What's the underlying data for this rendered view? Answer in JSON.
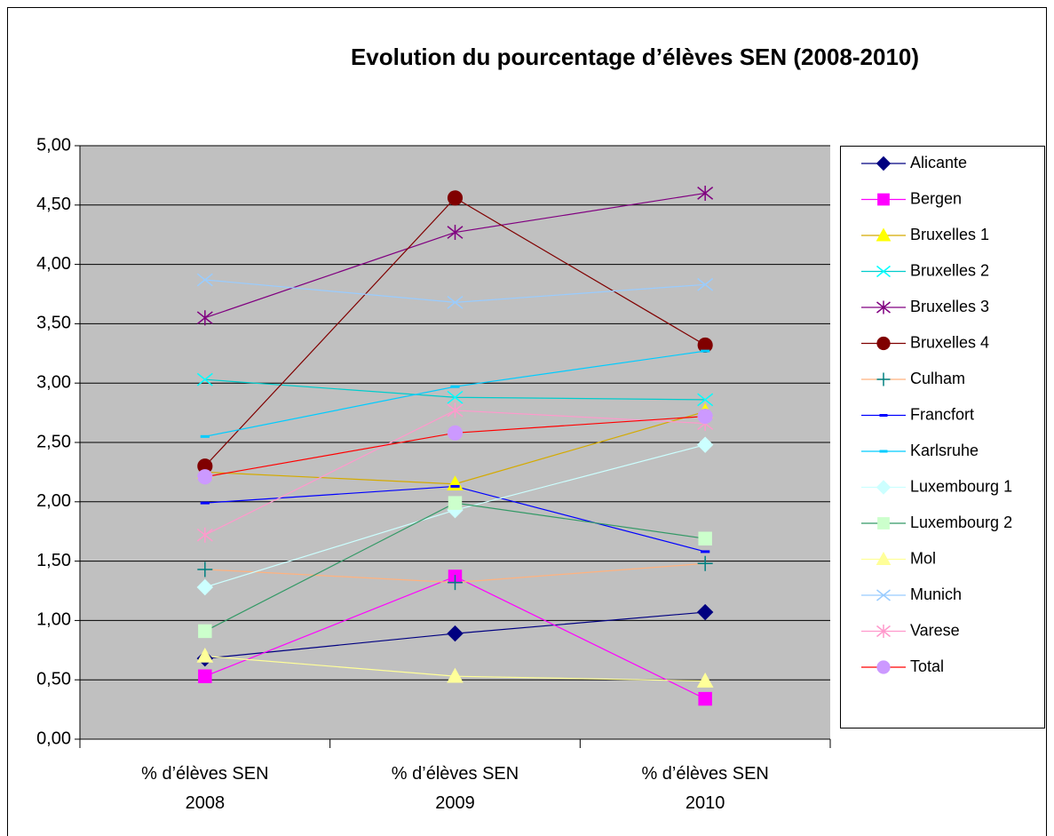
{
  "chart_data": {
    "type": "line",
    "title": "Evolution du pourcentage d’élèves SEN (2008-2010)",
    "categories": [
      "% d’élèves SEN 2008",
      "% d’élèves SEN 2009",
      "% d’élèves SEN 2010"
    ],
    "ylim": [
      0,
      5
    ],
    "yticks": [
      {
        "value": 0,
        "label": "0,00"
      },
      {
        "value": 0.5,
        "label": "0,50"
      },
      {
        "value": 1,
        "label": "1,00"
      },
      {
        "value": 1.5,
        "label": "1,50"
      },
      {
        "value": 2,
        "label": "2,00"
      },
      {
        "value": 2.5,
        "label": "2,50"
      },
      {
        "value": 3,
        "label": "3,00"
      },
      {
        "value": 3.5,
        "label": "3,50"
      },
      {
        "value": 4,
        "label": "4,00"
      },
      {
        "value": 4.5,
        "label": "4,50"
      },
      {
        "value": 5,
        "label": "5,00"
      }
    ],
    "grid": true,
    "legend": "right",
    "series": [
      {
        "name": "Alicante",
        "color": "#000080",
        "marker": "diamond",
        "values": [
          0.68,
          0.89,
          1.07
        ]
      },
      {
        "name": "Bergen",
        "color": "#FF00FF",
        "marker": "square",
        "values": [
          0.53,
          1.37,
          0.34
        ]
      },
      {
        "name": "Bruxelles 1",
        "color": "#FFFF00",
        "line_color": "#D4AA00",
        "marker": "triangle",
        "values": [
          2.25,
          2.15,
          2.76
        ]
      },
      {
        "name": "Bruxelles 2",
        "color": "#00FFFF",
        "line_color": "#00CCCC",
        "marker": "x",
        "values": [
          3.03,
          2.88,
          2.86
        ]
      },
      {
        "name": "Bruxelles 3",
        "color": "#800080",
        "marker": "star",
        "values": [
          3.55,
          4.27,
          4.6
        ]
      },
      {
        "name": "Bruxelles 4",
        "color": "#800000",
        "marker": "circle",
        "values": [
          2.3,
          4.56,
          3.32
        ]
      },
      {
        "name": "Culham",
        "color": "#008080",
        "line_color": "#FFB27F",
        "marker": "plus",
        "values": [
          1.43,
          1.32,
          1.48
        ]
      },
      {
        "name": "Francfort",
        "color": "#0000FF",
        "marker": "dash",
        "values": [
          1.99,
          2.13,
          1.58
        ]
      },
      {
        "name": "Karlsruhe",
        "color": "#00CCFF",
        "marker": "dash",
        "values": [
          2.55,
          2.97,
          3.27
        ]
      },
      {
        "name": "Luxembourg 1",
        "color": "#CCFFFF",
        "marker": "diamond",
        "values": [
          1.28,
          1.93,
          2.48
        ]
      },
      {
        "name": "Luxembourg 2",
        "color": "#CCFFCC",
        "line_color": "#339966",
        "marker": "square",
        "values": [
          0.91,
          1.99,
          1.69
        ]
      },
      {
        "name": "Mol",
        "color": "#FFFF99",
        "marker": "triangle",
        "values": [
          0.7,
          0.53,
          0.49
        ]
      },
      {
        "name": "Munich",
        "color": "#99CCFF",
        "marker": "x",
        "values": [
          3.87,
          3.68,
          3.83
        ]
      },
      {
        "name": "Varese",
        "color": "#FF99CC",
        "marker": "star",
        "values": [
          1.72,
          2.77,
          2.66
        ]
      },
      {
        "name": "Total",
        "color": "#CC99FF",
        "line_color": "#FF0000",
        "marker": "circle",
        "values": [
          2.21,
          2.58,
          2.72
        ]
      }
    ]
  }
}
